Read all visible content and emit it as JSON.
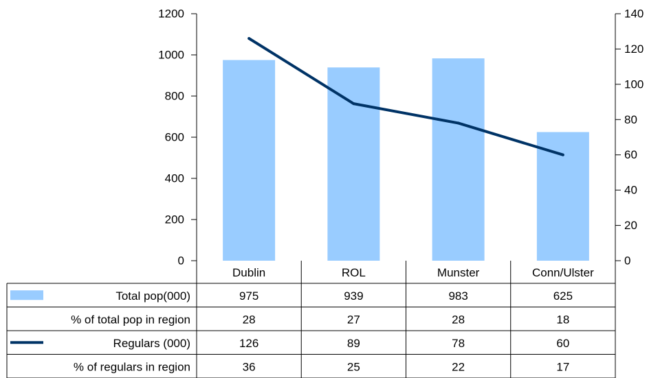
{
  "chart_data": {
    "type": "bar",
    "categories": [
      "Dublin",
      "ROL",
      "Munster",
      "Conn/Ulster"
    ],
    "series": [
      {
        "name": "Total pop(000)",
        "type": "bar",
        "axis": "left",
        "color": "#99ccff",
        "values": [
          975,
          939,
          983,
          625
        ]
      },
      {
        "name": "Regulars (000)",
        "type": "line",
        "axis": "right",
        "color": "#003366",
        "values": [
          126,
          89,
          78,
          60
        ]
      }
    ],
    "y_left": {
      "min": 0,
      "max": 1200,
      "ticks": [
        "0",
        "200",
        "400",
        "600",
        "800",
        "1000",
        "1200"
      ]
    },
    "y_right": {
      "min": 0,
      "max": 140,
      "ticks": [
        "0",
        "20",
        "40",
        "60",
        "80",
        "100",
        "120",
        "140"
      ]
    },
    "table": {
      "rows": [
        {
          "label": "Total pop(000)",
          "legend": "bar",
          "values": [
            "975",
            "939",
            "983",
            "625"
          ]
        },
        {
          "label": "% of total pop in region",
          "legend": "none",
          "values": [
            "28",
            "27",
            "28",
            "18"
          ]
        },
        {
          "label": "Regulars (000)",
          "legend": "line",
          "values": [
            "126",
            "89",
            "78",
            "60"
          ]
        },
        {
          "label": "% of regulars in region",
          "legend": "none",
          "values": [
            "36",
            "25",
            "22",
            "17"
          ]
        }
      ]
    },
    "grid": false
  }
}
